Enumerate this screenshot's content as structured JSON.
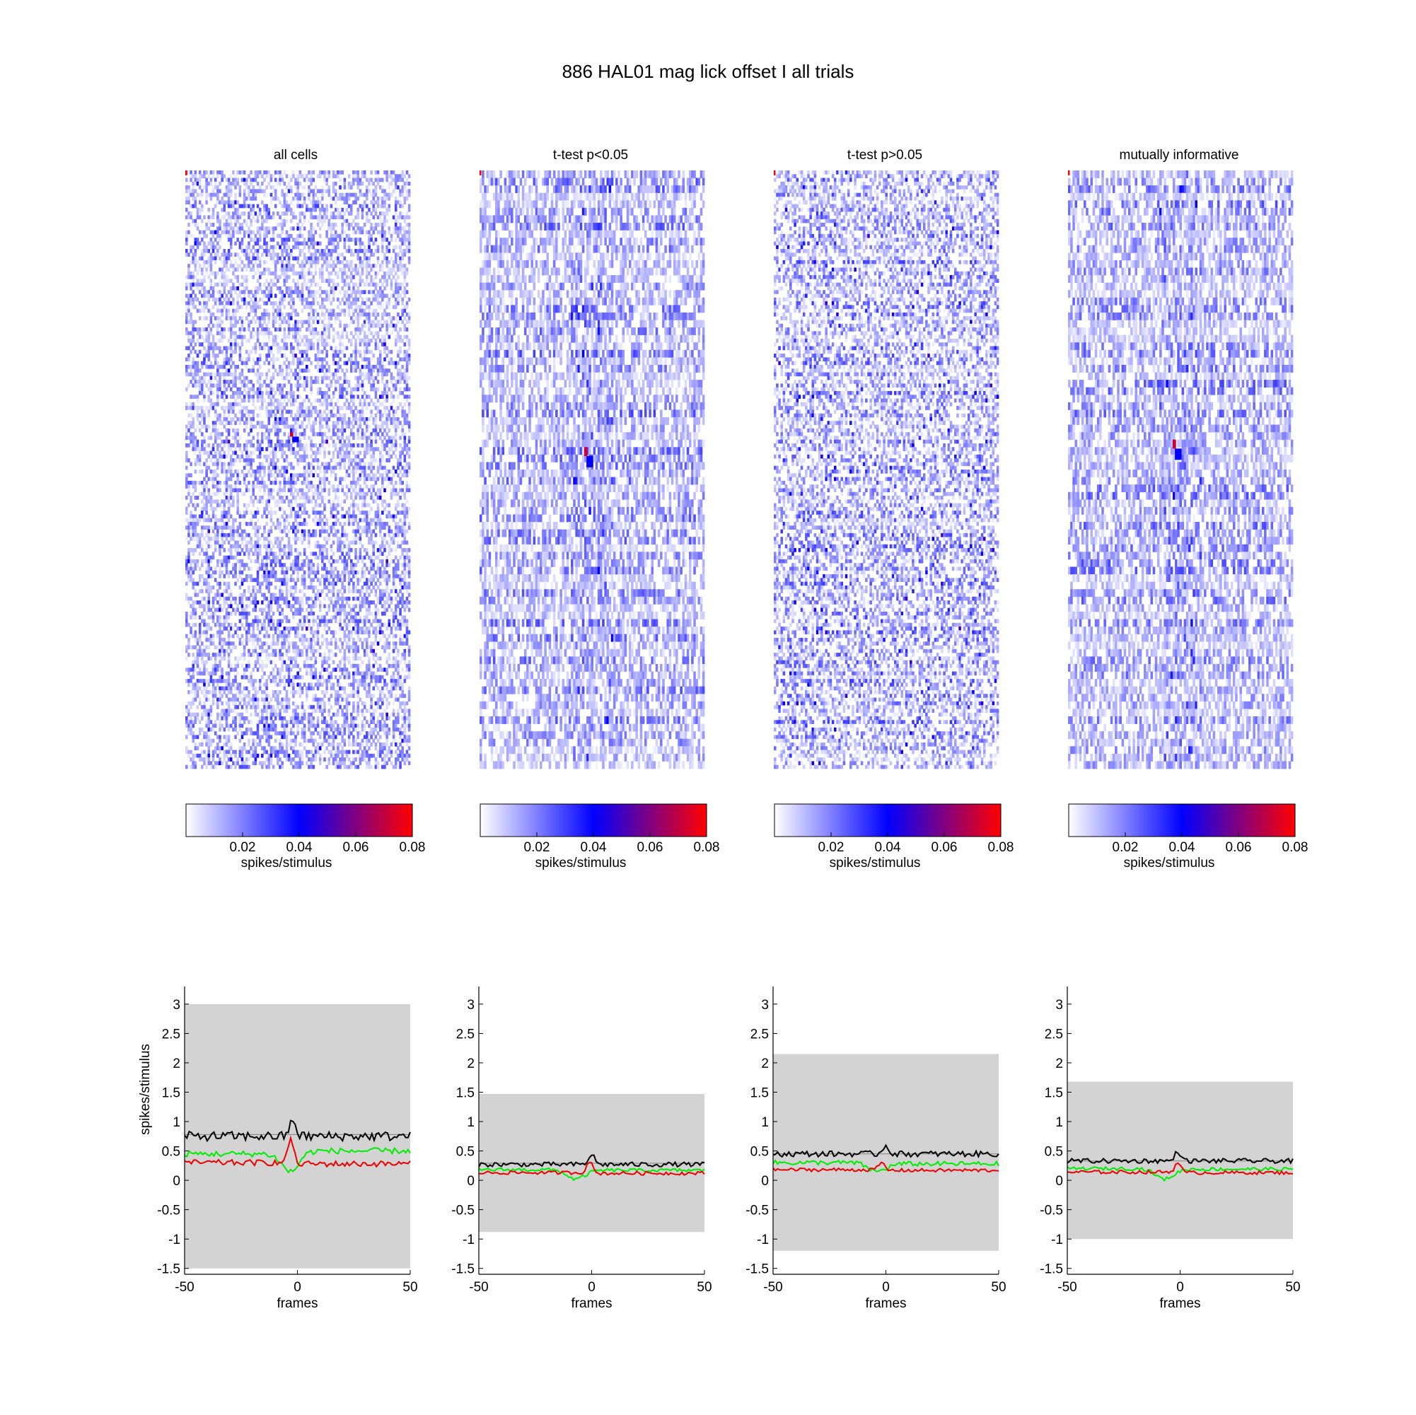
{
  "figure": {
    "title": "886 HAL01 mag lick  offset I all trials"
  },
  "colorbar": {
    "ticks": [
      "0.02",
      "0.04",
      "0.06",
      "0.08"
    ],
    "label": "spikes/stimulus",
    "range": [
      0,
      0.08
    ],
    "colors": [
      "#ffffff",
      "#0000ff",
      "#80007f",
      "#ff0000"
    ]
  },
  "series_colors": {
    "black": "#000000",
    "green": "#00ee00",
    "red": "#ee0000",
    "band": "#d3d3d3",
    "mean_line": "#808080"
  },
  "chart_data": [
    {
      "type": "heatmap",
      "title": "all cells",
      "rows": 160,
      "cols": 101,
      "x": [
        -50,
        50
      ],
      "value_range": [
        0,
        0.08
      ],
      "hotspot": {
        "frame": -3,
        "row": 70,
        "value": 0.08
      }
    },
    {
      "type": "heatmap",
      "title": "t-test p<0.05",
      "rows": 80,
      "cols": 101,
      "x": [
        -50,
        50
      ],
      "value_range": [
        0,
        0.08
      ],
      "hotspot": {
        "frame": -3,
        "row": 37,
        "value": 0.08
      }
    },
    {
      "type": "heatmap",
      "title": "t-test p>0.05",
      "rows": 160,
      "cols": 101,
      "x": [
        -50,
        50
      ],
      "value_range": [
        0,
        0.08
      ],
      "hotspot": null
    },
    {
      "type": "heatmap",
      "title": "mutually informative",
      "rows": 80,
      "cols": 101,
      "x": [
        -50,
        50
      ],
      "value_range": [
        0,
        0.08
      ],
      "hotspot": {
        "frame": -3,
        "row": 36,
        "value": 0.08
      }
    },
    {
      "type": "line",
      "xlabel": "frames",
      "ylabel": "spikes/stimulus",
      "xlim": [
        -50,
        50
      ],
      "ylim": [
        -1.6,
        3.3
      ],
      "xticks": [
        "-50",
        "0",
        "50"
      ],
      "yticks": [
        "-1.5",
        "-1",
        "-0.5",
        "0",
        "0.5",
        "1",
        "1.5",
        "2",
        "2.5",
        "3"
      ],
      "band": [
        -1.5,
        3.0
      ],
      "mean_level": 0.78,
      "series": [
        {
          "color": "black",
          "baseline": 0.75,
          "noise": 0.08,
          "peak": 1.05,
          "peak_at": -2
        },
        {
          "color": "green",
          "baseline": 0.45,
          "noise": 0.05,
          "dip": 0.15,
          "dip_at": -3,
          "after": 0.5
        },
        {
          "color": "red",
          "baseline": 0.3,
          "noise": 0.05,
          "peak": 0.72,
          "peak_at": -3,
          "after": 0.28
        }
      ]
    },
    {
      "type": "line",
      "xlabel": "frames",
      "ylabel": "",
      "xlim": [
        -50,
        50
      ],
      "ylim": [
        -1.6,
        3.3
      ],
      "xticks": [
        "-50",
        "0",
        "50"
      ],
      "yticks": [
        "-1.5",
        "-1",
        "-0.5",
        "0",
        "0.5",
        "1",
        "1.5",
        "2",
        "2.5",
        "3"
      ],
      "band": [
        -0.88,
        1.47
      ],
      "mean_level": 0.29,
      "series": [
        {
          "color": "black",
          "baseline": 0.27,
          "noise": 0.04,
          "peak": 0.45,
          "peak_at": 0
        },
        {
          "color": "green",
          "baseline": 0.18,
          "noise": 0.03,
          "dip": 0.02,
          "dip_at": -7,
          "after": 0.17
        },
        {
          "color": "red",
          "baseline": 0.13,
          "noise": 0.03,
          "peak": 0.33,
          "peak_at": -1,
          "after": 0.12
        }
      ]
    },
    {
      "type": "line",
      "xlabel": "frames",
      "ylabel": "",
      "xlim": [
        -50,
        50
      ],
      "ylim": [
        -1.6,
        3.3
      ],
      "xticks": [
        "-50",
        "0",
        "50"
      ],
      "yticks": [
        "-1.5",
        "-1",
        "-0.5",
        "0",
        "0.5",
        "1",
        "1.5",
        "2",
        "2.5",
        "3"
      ],
      "band": [
        -1.2,
        2.15
      ],
      "mean_level": 0.45,
      "series": [
        {
          "color": "black",
          "baseline": 0.45,
          "noise": 0.05,
          "peak": 0.6,
          "peak_at": 0
        },
        {
          "color": "green",
          "baseline": 0.3,
          "noise": 0.04,
          "dip": 0.15,
          "dip_at": -4,
          "after": 0.28
        },
        {
          "color": "red",
          "baseline": 0.18,
          "noise": 0.03,
          "peak": 0.3,
          "peak_at": -2,
          "after": 0.17
        }
      ]
    },
    {
      "type": "line",
      "xlabel": "frames",
      "ylabel": "",
      "xlim": [
        -50,
        50
      ],
      "ylim": [
        -1.6,
        3.3
      ],
      "xticks": [
        "-50",
        "0",
        "50"
      ],
      "yticks": [
        "-1.5",
        "-1",
        "-0.5",
        "0",
        "0.5",
        "1",
        "1.5",
        "2",
        "2.5",
        "3"
      ],
      "band": [
        -1.0,
        1.68
      ],
      "mean_level": 0.33,
      "series": [
        {
          "color": "black",
          "baseline": 0.33,
          "noise": 0.04,
          "peak": 0.5,
          "peak_at": -1
        },
        {
          "color": "green",
          "baseline": 0.2,
          "noise": 0.03,
          "dip": 0.02,
          "dip_at": -7,
          "after": 0.19
        },
        {
          "color": "red",
          "baseline": 0.14,
          "noise": 0.03,
          "peak": 0.32,
          "peak_at": -1,
          "after": 0.13
        }
      ]
    }
  ]
}
